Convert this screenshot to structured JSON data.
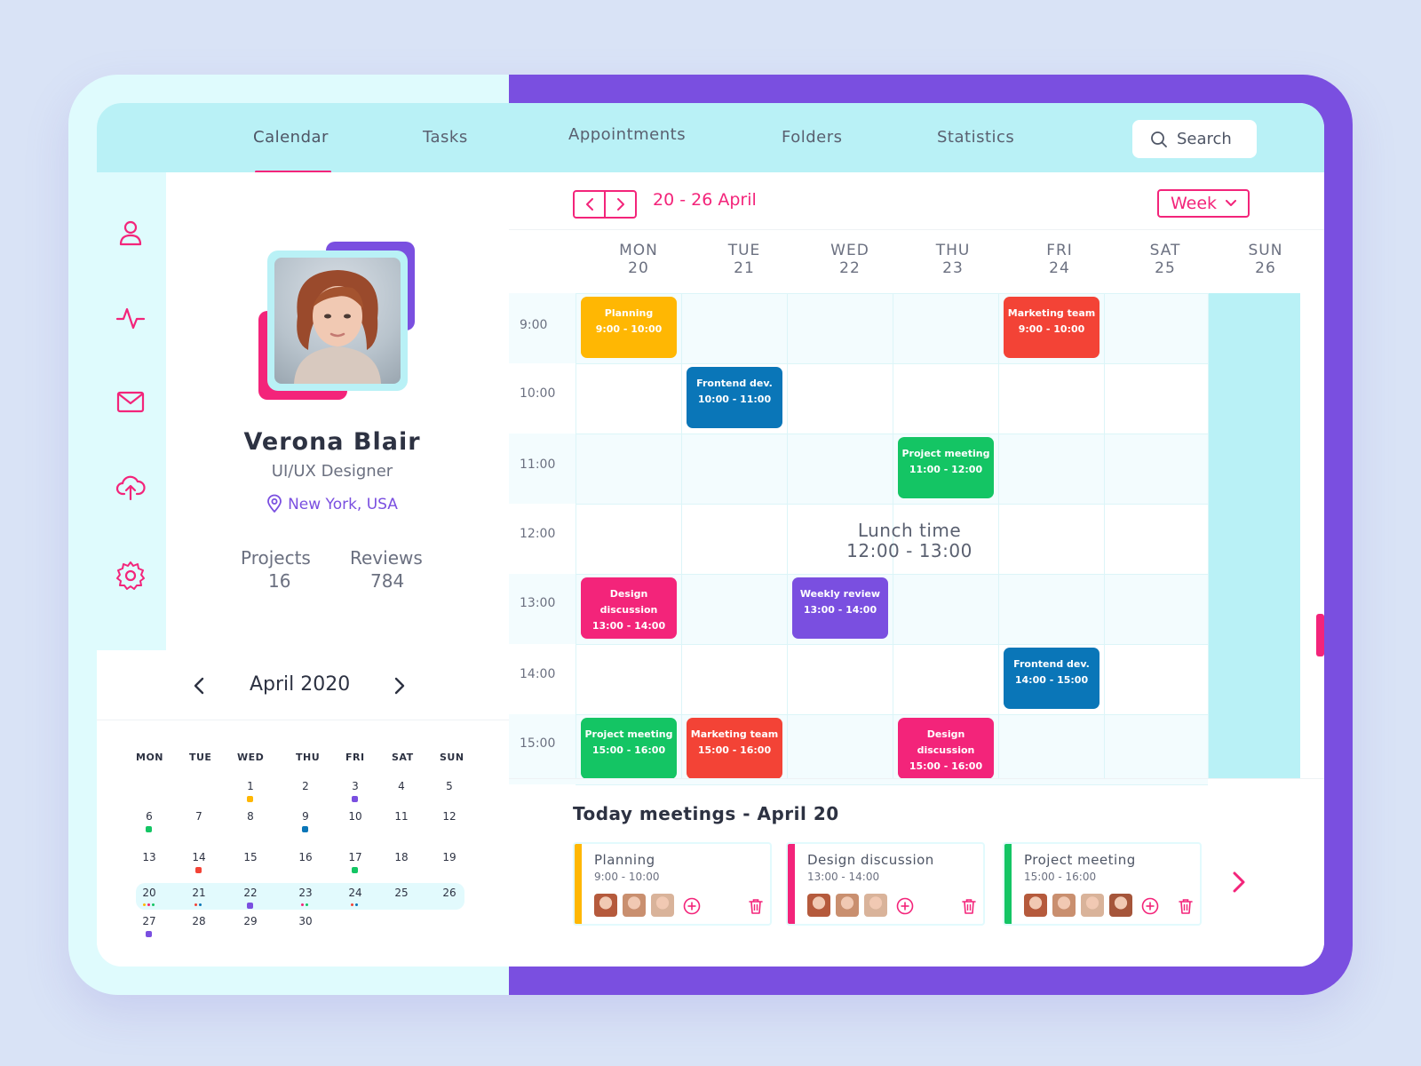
{
  "nav": {
    "items": [
      "Calendar",
      "Tasks",
      "Appointments",
      "Folders",
      "Statistics"
    ],
    "search_label": "Search"
  },
  "sidebar": {
    "icons": [
      "user-icon",
      "activity-icon",
      "mail-icon",
      "upload-cloud-icon",
      "settings-icon"
    ]
  },
  "profile": {
    "name": "Verona Blair",
    "role": "UI/UX Designer",
    "location": "New York, USA",
    "stats": [
      {
        "label": "Projects",
        "value": "16"
      },
      {
        "label": "Reviews",
        "value": "784"
      }
    ]
  },
  "mini_calendar": {
    "month_label": "April 2020",
    "days_of_week": [
      "MON",
      "TUE",
      "WED",
      "THU",
      "FRI",
      "SAT",
      "SUN"
    ],
    "weeks": [
      [
        "",
        "",
        "1",
        "2",
        "3",
        "4",
        "5"
      ],
      [
        "6",
        "7",
        "8",
        "9",
        "10",
        "11",
        "12"
      ],
      [
        "13",
        "14",
        "15",
        "16",
        "17",
        "18",
        "19"
      ],
      [
        "20",
        "21",
        "22",
        "23",
        "24",
        "25",
        "26"
      ],
      [
        "27",
        "28",
        "29",
        "30",
        "",
        "",
        ""
      ]
    ]
  },
  "week_view": {
    "range_label": "20 - 26 April",
    "view_mode": "Week",
    "columns": [
      {
        "dow": "MON",
        "date": "20"
      },
      {
        "dow": "TUE",
        "date": "21"
      },
      {
        "dow": "WED",
        "date": "22"
      },
      {
        "dow": "THU",
        "date": "23"
      },
      {
        "dow": "FRI",
        "date": "24"
      },
      {
        "dow": "SAT",
        "date": "25"
      },
      {
        "dow": "SUN",
        "date": "26"
      }
    ],
    "times": [
      "9:00",
      "10:00",
      "11:00",
      "12:00",
      "13:00",
      "14:00",
      "15:00"
    ],
    "lunch": {
      "title": "Lunch time",
      "time": "12:00 - 13:00"
    },
    "events": [
      {
        "title": "Planning",
        "time": "9:00 - 10:00",
        "color": "#ffb703"
      },
      {
        "title": "Marketing team",
        "time": "9:00 - 10:00",
        "color": "#f34336"
      },
      {
        "title": "Frontend dev.",
        "time": "10:00 - 11:00",
        "color": "#0a76b8"
      },
      {
        "title": "Project meeting",
        "time": "11:00 - 12:00",
        "color": "#14c564"
      },
      {
        "title": "Design discussion",
        "time": "13:00 - 14:00",
        "color": "#f3247a"
      },
      {
        "title": "Weekly review",
        "time": "13:00 - 14:00",
        "color": "#7a4fe0"
      },
      {
        "title": "Frontend dev.",
        "time": "14:00 - 15:00",
        "color": "#0a76b8"
      },
      {
        "title": "Project meeting",
        "time": "15:00 - 16:00",
        "color": "#14c564"
      },
      {
        "title": "Marketing team",
        "time": "15:00 - 16:00",
        "color": "#f34336"
      },
      {
        "title": "Design discussion",
        "time": "15:00 - 16:00",
        "color": "#f3247a"
      }
    ]
  },
  "today": {
    "title": "Today meetings - April 20",
    "meetings": [
      {
        "title": "Planning",
        "time": "9:00 - 10:00",
        "color": "#ffb703"
      },
      {
        "title": "Design discussion",
        "time": "13:00 - 14:00",
        "color": "#f3247a"
      },
      {
        "title": "Project meeting",
        "time": "15:00 - 16:00",
        "color": "#14c564"
      }
    ]
  },
  "colors": {
    "accent": "#f3247a",
    "purple": "#7a4fe0",
    "cyan": "#b9f1f6"
  }
}
